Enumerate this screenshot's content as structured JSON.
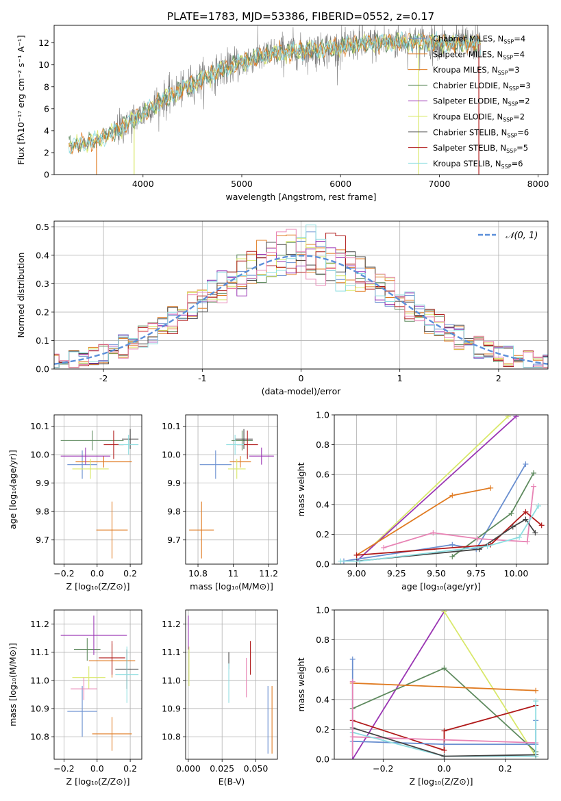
{
  "figure": {
    "title": "PLATE=1783, MJD=53386, FIBERID=0552, z=0.17"
  },
  "colors": {
    "Chabrier MILES": "#6a8fd0",
    "Salpeter MILES": "#e07b22",
    "Kroupa MILES": "#e07b22",
    "Chabrier ELODIE": "#5e8a5e",
    "Salpeter ELODIE": "#9a35b3",
    "Kroupa ELODIE": "#d9e86a",
    "Chabrier STELIB": "#444444",
    "Salpeter STELIB": "#b01a1a",
    "Kroupa STELIB": "#8ddde0",
    "pink": "#e884b5",
    "gauss": "#5b8fd9"
  },
  "chart_data": [
    {
      "id": "spectrum",
      "type": "line",
      "xlabel": "wavelength [Angstrom, rest frame]",
      "ylabel": "Flux [fλ10⁻¹⁷ erg cm⁻² s⁻¹ A⁻¹]",
      "xlim": [
        3100,
        8100
      ],
      "ylim": [
        0,
        13.6
      ],
      "xticks": [
        4000,
        5000,
        6000,
        7000,
        8000
      ],
      "yticks": [
        0,
        2,
        4,
        6,
        8,
        10,
        12
      ],
      "legend_position": "right",
      "legend": [
        {
          "model": "Chabrier MILES",
          "nssp": "4"
        },
        {
          "model": "Salpeter MILES",
          "nssp": "4"
        },
        {
          "model": "Kroupa MILES",
          "nssp": "3"
        },
        {
          "model": "Chabrier ELODIE",
          "nssp": "3"
        },
        {
          "model": "Salpeter ELODIE",
          "nssp": "2"
        },
        {
          "model": "Kroupa ELODIE",
          "nssp": "2"
        },
        {
          "model": "Chabrier STELIB",
          "nssp": "6"
        },
        {
          "model": "Salpeter STELIB",
          "nssp": "5"
        },
        {
          "model": "Kroupa STELIB",
          "nssp": "6"
        }
      ],
      "continuum": [
        [
          3250,
          2.6
        ],
        [
          3500,
          3.0
        ],
        [
          3700,
          3.8
        ],
        [
          3900,
          5.0
        ],
        [
          4000,
          5.6
        ],
        [
          4200,
          6.8
        ],
        [
          4400,
          7.8
        ],
        [
          4600,
          8.7
        ],
        [
          4800,
          9.6
        ],
        [
          5000,
          10.2
        ],
        [
          5200,
          10.8
        ],
        [
          5400,
          11.1
        ],
        [
          5600,
          11.3
        ],
        [
          5800,
          11.4
        ],
        [
          6000,
          11.6
        ],
        [
          6200,
          11.9
        ],
        [
          6400,
          12.0
        ],
        [
          6600,
          12.1
        ],
        [
          6800,
          12.1
        ],
        [
          7000,
          12.0
        ],
        [
          7200,
          11.9
        ],
        [
          7400,
          11.9
        ]
      ],
      "dips": [
        {
          "x": 3530,
          "model": "Salpeter MILES"
        },
        {
          "x": 3910,
          "model": "Kroupa ELODIE"
        },
        {
          "x": 6790,
          "model": "Kroupa ELODIE"
        },
        {
          "x": 7400,
          "model": "Salpeter STELIB"
        }
      ]
    },
    {
      "id": "residuals",
      "type": "histogram",
      "xlabel": "(data-model)/error",
      "ylabel": "Normed distribution",
      "xlim": [
        -2.5,
        2.5
      ],
      "ylim": [
        0,
        0.52
      ],
      "xticks": [
        -2,
        -1,
        0,
        1,
        2
      ],
      "yticks": [
        0.0,
        0.1,
        0.2,
        0.3,
        0.4,
        0.5
      ],
      "legend_label": "𝒩(0, 1)",
      "legend_position": "top-right",
      "grid": true
    },
    {
      "id": "age-vs-Z",
      "type": "errorbar",
      "xlabel": "Z [log₁₀(Z/Z⊙)]",
      "ylabel": "age  [log₁₀(age/yr)]",
      "xlim": [
        -0.26,
        0.27
      ],
      "ylim": [
        9.615,
        10.14
      ],
      "xticks": [
        -0.2,
        0.0,
        0.2
      ],
      "xticklabels": [
        "−0.2",
        "0.0",
        "0.2"
      ],
      "yticks": [
        9.7,
        9.8,
        9.9,
        10.0,
        10.1
      ],
      "grid": true,
      "points": [
        {
          "model": "Chabrier MILES",
          "x": -0.09,
          "xerr": 0.09,
          "y": 9.965,
          "yerr": 0.05
        },
        {
          "model": "Salpeter MILES",
          "x": 0.09,
          "xerr": 0.095,
          "y": 9.735,
          "yerr": 0.1
        },
        {
          "model": "Kroupa MILES",
          "x": 0.04,
          "xerr": 0.17,
          "y": 9.975,
          "yerr": 0.02
        },
        {
          "model": "Chabrier ELODIE",
          "x": -0.03,
          "xerr": 0.19,
          "y": 10.05,
          "yerr": 0.035
        },
        {
          "model": "Salpeter ELODIE",
          "x": -0.07,
          "xerr": 0.15,
          "y": 9.995,
          "yerr": 0.03
        },
        {
          "model": "Kroupa ELODIE",
          "x": -0.04,
          "xerr": 0.11,
          "y": 9.95,
          "yerr": 0.035
        },
        {
          "model": "Chabrier STELIB",
          "x": 0.2,
          "xerr": 0.05,
          "y": 10.055,
          "yerr": 0.035
        },
        {
          "model": "Salpeter STELIB",
          "x": 0.1,
          "xerr": 0.06,
          "y": 10.035,
          "yerr": 0.05
        },
        {
          "model": "Kroupa STELIB",
          "x": 0.19,
          "xerr": 0.06,
          "y": 10.035,
          "yerr": 0.035
        }
      ]
    },
    {
      "id": "age-vs-mass",
      "type": "errorbar",
      "xlabel": "mass [log₁₀(M/M⊙)]",
      "ylabel": "",
      "xlim": [
        10.73,
        11.25
      ],
      "ylim": [
        9.615,
        10.14
      ],
      "xticks": [
        10.8,
        11.0,
        11.2
      ],
      "yticks": [
        9.7,
        9.8,
        9.9,
        10.0,
        10.1
      ],
      "grid": true,
      "points": [
        {
          "model": "Chabrier MILES",
          "x": 10.9,
          "xerr": 0.09,
          "y": 9.965,
          "yerr": 0.05
        },
        {
          "model": "Salpeter MILES",
          "x": 10.82,
          "xerr": 0.07,
          "y": 9.735,
          "yerr": 0.1
        },
        {
          "model": "Kroupa MILES",
          "x": 11.04,
          "xerr": 0.06,
          "y": 9.975,
          "yerr": 0.02
        },
        {
          "model": "Chabrier ELODIE",
          "x": 11.05,
          "xerr": 0.06,
          "y": 10.05,
          "yerr": 0.035
        },
        {
          "model": "Salpeter ELODIE",
          "x": 11.16,
          "xerr": 0.07,
          "y": 9.995,
          "yerr": 0.03
        },
        {
          "model": "Kroupa ELODIE",
          "x": 11.02,
          "xerr": 0.05,
          "y": 9.95,
          "yerr": 0.035
        },
        {
          "model": "Chabrier STELIB",
          "x": 11.06,
          "xerr": 0.05,
          "y": 10.055,
          "yerr": 0.035
        },
        {
          "model": "Salpeter STELIB",
          "x": 11.08,
          "xerr": 0.06,
          "y": 10.035,
          "yerr": 0.05
        },
        {
          "model": "Kroupa STELIB",
          "x": 11.01,
          "xerr": 0.05,
          "y": 10.035,
          "yerr": 0.035
        }
      ]
    },
    {
      "id": "mass-weight-vs-age",
      "type": "line",
      "xlabel": "age  [log₁₀(age/yr)]",
      "ylabel": "mass weight",
      "xlim": [
        8.86,
        10.2
      ],
      "ylim": [
        0,
        1
      ],
      "xticks": [
        9.0,
        9.25,
        9.5,
        9.75,
        10.0
      ],
      "xticklabels": [
        "9.00",
        "9.25",
        "9.50",
        "9.75",
        "10.00"
      ],
      "yticks": [
        0.0,
        0.2,
        0.4,
        0.6,
        0.8,
        1.0
      ],
      "grid": true,
      "series": [
        {
          "model": "Kroupa ELODIE",
          "x": [
            9.0,
            9.95
          ],
          "y": [
            0.02,
            0.99
          ]
        },
        {
          "model": "Salpeter ELODIE",
          "x": [
            9.0,
            10.0
          ],
          "y": [
            0.02,
            0.99
          ]
        },
        {
          "model": "Salpeter MILES",
          "x": [
            9.0,
            9.6,
            9.84
          ],
          "y": [
            0.06,
            0.46,
            0.51
          ]
        },
        {
          "model": "Chabrier MILES",
          "x": [
            8.92,
            9.6,
            9.75,
            10.06
          ],
          "y": [
            0.02,
            0.13,
            0.1,
            0.67
          ]
        },
        {
          "model": "Chabrier ELODIE",
          "x": [
            9.6,
            9.97,
            10.11
          ],
          "y": [
            0.05,
            0.34,
            0.61
          ]
        },
        {
          "model": "pink",
          "x": [
            9.17,
            9.48,
            9.76,
            10.07,
            10.11
          ],
          "y": [
            0.11,
            0.21,
            0.17,
            0.15,
            0.52
          ]
        },
        {
          "model": "Salpeter STELIB",
          "x": [
            9.0,
            9.84,
            10.06,
            10.16
          ],
          "y": [
            0.06,
            0.13,
            0.35,
            0.26
          ]
        },
        {
          "model": "Chabrier STELIB",
          "x": [
            9.0,
            9.77,
            9.98,
            10.06,
            10.12
          ],
          "y": [
            0.02,
            0.1,
            0.25,
            0.3,
            0.21
          ]
        },
        {
          "model": "Kroupa STELIB",
          "x": [
            8.9,
            9.02,
            9.82,
            10.02,
            10.14
          ],
          "y": [
            0.02,
            0.02,
            0.12,
            0.18,
            0.39
          ]
        }
      ]
    },
    {
      "id": "mass-vs-Z",
      "type": "errorbar",
      "xlabel": "Z [log₁₀(Z/Z⊙)]",
      "ylabel": "mass [log₁₀(M/M⊙)]",
      "xlim": [
        -0.26,
        0.27
      ],
      "ylim": [
        10.72,
        11.25
      ],
      "xticks": [
        -0.2,
        0.0,
        0.2
      ],
      "xticklabels": [
        "−0.2",
        "0.0",
        "0.2"
      ],
      "yticks": [
        10.8,
        10.9,
        11.0,
        11.1,
        11.2
      ],
      "grid": true,
      "points": [
        {
          "model": "Chabrier MILES",
          "x": -0.09,
          "xerr": 0.09,
          "y": 10.89,
          "yerr": 0.09
        },
        {
          "model": "Salpeter MILES",
          "x": 0.09,
          "xerr": 0.12,
          "y": 10.81,
          "yerr": 0.06
        },
        {
          "model": "Kroupa MILES",
          "x": 0.09,
          "xerr": 0.14,
          "y": 11.07,
          "yerr": 0.06
        },
        {
          "model": "Chabrier ELODIE",
          "x": -0.06,
          "xerr": 0.08,
          "y": 11.11,
          "yerr": 0.04
        },
        {
          "model": "Salpeter ELODIE",
          "x": -0.02,
          "xerr": 0.2,
          "y": 11.16,
          "yerr": 0.07
        },
        {
          "model": "Kroupa ELODIE",
          "x": -0.05,
          "xerr": 0.1,
          "y": 11.01,
          "yerr": 0.04
        },
        {
          "model": "Chabrier STELIB",
          "x": 0.18,
          "xerr": 0.07,
          "y": 11.04,
          "yerr": 0.07
        },
        {
          "model": "Salpeter STELIB",
          "x": 0.09,
          "xerr": 0.08,
          "y": 11.08,
          "yerr": 0.06
        },
        {
          "model": "Kroupa STELIB",
          "x": 0.18,
          "xerr": 0.07,
          "y": 11.02,
          "yerr": 0.1
        },
        {
          "model": "pink",
          "x": -0.08,
          "xerr": 0.08,
          "y": 10.97,
          "yerr": 0.04
        }
      ]
    },
    {
      "id": "mass-vs-ebv",
      "type": "errorbar",
      "xlabel": "E(B-V)",
      "ylabel": "",
      "xlim": [
        -0.002,
        0.066
      ],
      "ylim": [
        10.72,
        11.25
      ],
      "xticks": [
        0.0,
        0.025,
        0.05
      ],
      "xticklabels": [
        "0.000",
        "0.025",
        "0.050"
      ],
      "yticks": [
        10.8,
        10.9,
        11.0,
        11.1,
        11.2
      ],
      "grid": true,
      "points": [
        {
          "model": "Chabrier MILES",
          "x": 0.059,
          "xerr": 0,
          "y": 10.86,
          "yerr": 0.12
        },
        {
          "model": "Salpeter MILES",
          "x": 0.062,
          "xerr": 0,
          "y": 10.86,
          "yerr": 0.12
        },
        {
          "model": "Kroupa ELODIE",
          "x": 0.0005,
          "xerr": 0,
          "y": 11.05,
          "yerr": 0.07
        },
        {
          "model": "Salpeter ELODIE",
          "x": 0.0,
          "xerr": 0,
          "y": 11.17,
          "yerr": 0.06
        },
        {
          "model": "Chabrier STELIB",
          "x": 0.03,
          "xerr": 0,
          "y": 11.07,
          "yerr": 0.03
        },
        {
          "model": "Salpeter STELIB",
          "x": 0.046,
          "xerr": 0,
          "y": 11.08,
          "yerr": 0.06
        },
        {
          "model": "pink",
          "x": 0.043,
          "xerr": 0,
          "y": 11.01,
          "yerr": 0.07
        },
        {
          "model": "Kroupa STELIB",
          "x": 0.03,
          "xerr": 0,
          "y": 10.99,
          "yerr": 0.07
        }
      ]
    },
    {
      "id": "mass-weight-vs-Z",
      "type": "line",
      "xlabel": "Z [log₁₀(Z/Z⊙)]",
      "ylabel": "mass weight",
      "xlim": [
        -0.36,
        0.34
      ],
      "ylim": [
        0,
        1
      ],
      "xticks": [
        -0.2,
        0.0,
        0.2
      ],
      "xticklabels": [
        "−0.2",
        "0.0",
        "0.2"
      ],
      "yticks": [
        0.0,
        0.2,
        0.4,
        0.6,
        0.8,
        1.0
      ],
      "grid": true,
      "series": [
        {
          "model": "Salpeter ELODIE",
          "x": [
            -0.3,
            0.0
          ],
          "y": [
            0.0,
            0.99
          ]
        },
        {
          "model": "Kroupa ELODIE",
          "x": [
            0.0,
            0.3
          ],
          "y": [
            0.99,
            0.02
          ]
        },
        {
          "model": "Chabrier ELODIE",
          "x": [
            -0.3,
            0.0,
            0.3
          ],
          "y": [
            0.34,
            0.61,
            0.05
          ]
        },
        {
          "model": "Salpeter MILES",
          "x": [
            -0.3,
            0.3
          ],
          "y": [
            0.51,
            0.46
          ]
        },
        {
          "model": "Salpeter STELIB",
          "x": [
            -0.3,
            0.0,
            0.0,
            0.3
          ],
          "y": [
            0.26,
            0.06,
            0.19,
            0.36
          ]
        },
        {
          "model": "pink",
          "x": [
            -0.3,
            0.3
          ],
          "y": [
            0.15,
            0.11
          ]
        },
        {
          "model": "Chabrier MILES",
          "x": [
            -0.3,
            0.0,
            0.3
          ],
          "y": [
            0.12,
            0.1,
            0.1
          ]
        },
        {
          "model": "Kroupa STELIB",
          "x": [
            -0.3,
            0.0,
            0.3
          ],
          "y": [
            0.18,
            0.02,
            0.02
          ]
        },
        {
          "model": "Chabrier STELIB",
          "x": [
            -0.3,
            0.0,
            0.3
          ],
          "y": [
            0.21,
            0.02,
            0.03
          ]
        }
      ],
      "markers": [
        {
          "model": "Chabrier MILES",
          "x": -0.3,
          "y": 0.67
        },
        {
          "model": "Chabrier MILES",
          "x": 0.3,
          "y": 0.26
        },
        {
          "model": "Kroupa STELIB",
          "x": 0.3,
          "y": 0.39
        },
        {
          "model": "pink",
          "x": -0.3,
          "y": 0.52
        }
      ]
    }
  ]
}
